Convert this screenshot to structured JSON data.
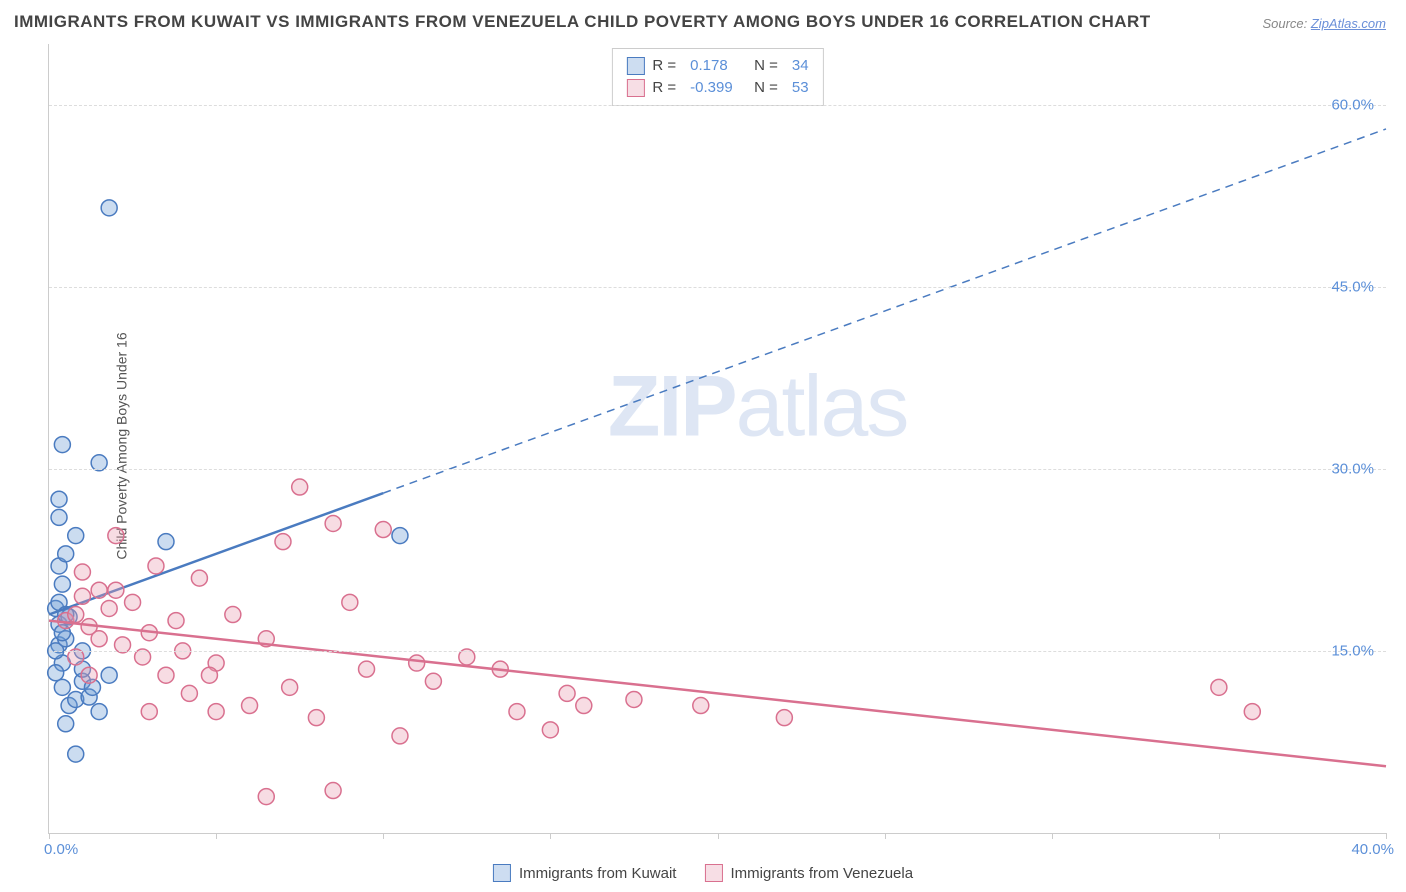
{
  "title": "IMMIGRANTS FROM KUWAIT VS IMMIGRANTS FROM VENEZUELA CHILD POVERTY AMONG BOYS UNDER 16 CORRELATION CHART",
  "source": {
    "label": "Source: ",
    "site": "ZipAtlas.com"
  },
  "y_axis_label": "Child Poverty Among Boys Under 16",
  "watermark": {
    "bold": "ZIP",
    "rest": "atlas"
  },
  "chart": {
    "type": "scatter",
    "background_color": "#ffffff",
    "grid_color": "#dddddd",
    "axis_color": "#cccccc",
    "tick_label_color": "#5b8fd8",
    "tick_fontsize": 15,
    "xlim": [
      0,
      40
    ],
    "ylim": [
      0,
      65
    ],
    "x_ticks": [
      0,
      5,
      10,
      15,
      20,
      25,
      30,
      35,
      40
    ],
    "x_tick_labels": {
      "0": "0.0%",
      "40": "40.0%"
    },
    "y_ticks": [
      15,
      30,
      45,
      60
    ],
    "y_tick_labels": [
      "15.0%",
      "30.0%",
      "45.0%",
      "60.0%"
    ],
    "marker_radius": 8,
    "marker_stroke_width": 1.5,
    "marker_fill_opacity": 0.35,
    "series": [
      {
        "name": "Immigrants from Kuwait",
        "color": "#6a9ad4",
        "stroke": "#4a7bc0",
        "R": "0.178",
        "N": "34",
        "regression": {
          "x1": 0,
          "y1": 18.0,
          "x2": 40,
          "y2": 58.0,
          "solid_until_x": 10,
          "line_width": 2.5
        },
        "points": [
          [
            0.2,
            18.5
          ],
          [
            0.3,
            17.2
          ],
          [
            0.4,
            20.5
          ],
          [
            0.3,
            22.0
          ],
          [
            0.4,
            14.0
          ],
          [
            0.3,
            15.5
          ],
          [
            0.5,
            16.0
          ],
          [
            0.2,
            13.2
          ],
          [
            0.4,
            12.0
          ],
          [
            0.6,
            10.5
          ],
          [
            0.8,
            11.0
          ],
          [
            1.0,
            12.5
          ],
          [
            1.2,
            11.2
          ],
          [
            1.0,
            13.5
          ],
          [
            0.5,
            9.0
          ],
          [
            1.5,
            10.0
          ],
          [
            1.3,
            12.0
          ],
          [
            0.3,
            26.0
          ],
          [
            0.3,
            27.5
          ],
          [
            0.4,
            32.0
          ],
          [
            1.5,
            30.5
          ],
          [
            0.8,
            24.5
          ],
          [
            0.5,
            23.0
          ],
          [
            3.5,
            24.0
          ],
          [
            1.8,
            51.5
          ],
          [
            0.3,
            19.0
          ],
          [
            0.6,
            17.8
          ],
          [
            1.0,
            15.0
          ],
          [
            1.8,
            13.0
          ],
          [
            0.8,
            6.5
          ],
          [
            10.5,
            24.5
          ],
          [
            0.4,
            16.5
          ],
          [
            0.2,
            15.0
          ],
          [
            0.5,
            18.0
          ]
        ]
      },
      {
        "name": "Immigrants from Venezuela",
        "color": "#e89bb0",
        "stroke": "#d9708f",
        "R": "-0.399",
        "N": "53",
        "regression": {
          "x1": 0,
          "y1": 17.5,
          "x2": 40,
          "y2": 5.5,
          "solid_until_x": 40,
          "line_width": 2.5
        },
        "points": [
          [
            0.5,
            17.5
          ],
          [
            0.8,
            18.0
          ],
          [
            1.0,
            19.5
          ],
          [
            1.2,
            17.0
          ],
          [
            1.5,
            16.0
          ],
          [
            1.8,
            18.5
          ],
          [
            2.0,
            20.0
          ],
          [
            2.2,
            15.5
          ],
          [
            2.5,
            19.0
          ],
          [
            2.8,
            14.5
          ],
          [
            3.0,
            16.5
          ],
          [
            3.2,
            22.0
          ],
          [
            3.5,
            13.0
          ],
          [
            3.8,
            17.5
          ],
          [
            4.0,
            15.0
          ],
          [
            4.5,
            21.0
          ],
          [
            5.0,
            14.0
          ],
          [
            5.5,
            18.0
          ],
          [
            6.0,
            10.5
          ],
          [
            6.5,
            16.0
          ],
          [
            7.0,
            24.0
          ],
          [
            7.2,
            12.0
          ],
          [
            7.5,
            28.5
          ],
          [
            8.0,
            9.5
          ],
          [
            8.5,
            25.5
          ],
          [
            9.0,
            19.0
          ],
          [
            9.5,
            13.5
          ],
          [
            10.0,
            25.0
          ],
          [
            10.5,
            8.0
          ],
          [
            11.0,
            14.0
          ],
          [
            11.5,
            12.5
          ],
          [
            13.5,
            13.5
          ],
          [
            14.0,
            10.0
          ],
          [
            15.0,
            8.5
          ],
          [
            15.5,
            11.5
          ],
          [
            16.0,
            10.5
          ],
          [
            17.5,
            11.0
          ],
          [
            19.5,
            10.5
          ],
          [
            22.0,
            9.5
          ],
          [
            6.5,
            3.0
          ],
          [
            8.5,
            3.5
          ],
          [
            5.0,
            10.0
          ],
          [
            4.2,
            11.5
          ],
          [
            1.0,
            21.5
          ],
          [
            1.5,
            20.0
          ],
          [
            2.0,
            24.5
          ],
          [
            0.8,
            14.5
          ],
          [
            1.2,
            13.0
          ],
          [
            35.0,
            12.0
          ],
          [
            36.0,
            10.0
          ],
          [
            3.0,
            10.0
          ],
          [
            4.8,
            13.0
          ],
          [
            12.5,
            14.5
          ]
        ]
      }
    ],
    "stats_legend": {
      "position": "top-center",
      "border_color": "#cccccc"
    },
    "bottom_legend": {
      "position": "bottom-center"
    }
  }
}
